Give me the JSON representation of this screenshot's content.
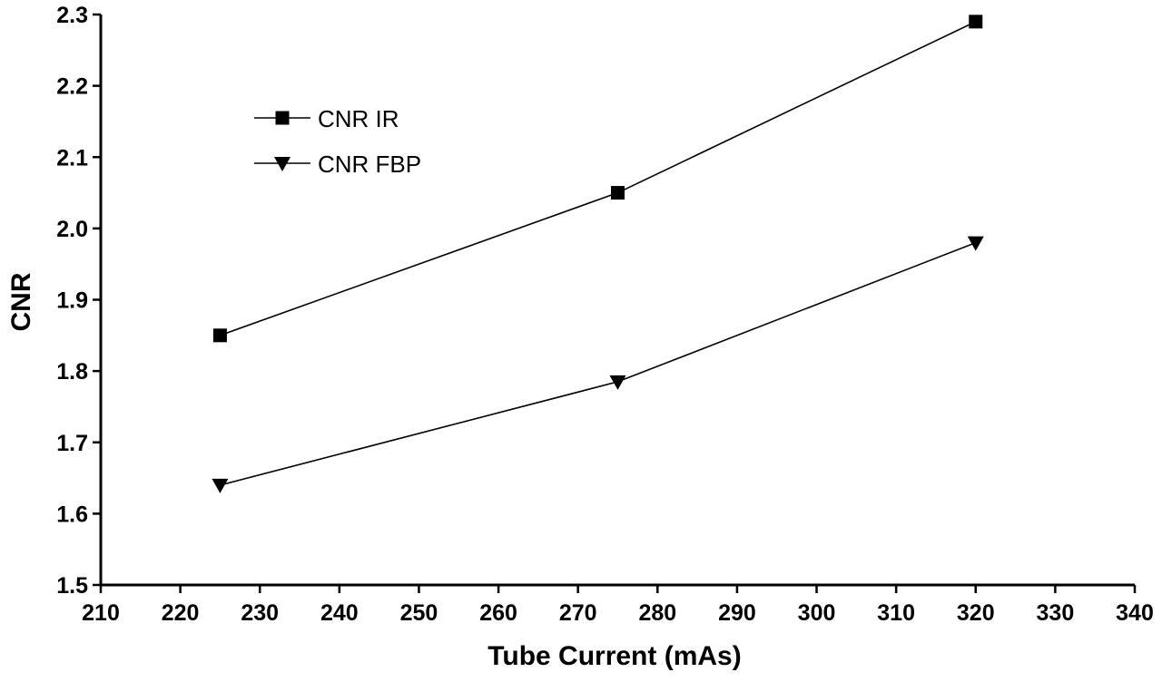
{
  "chart_data": {
    "type": "line",
    "xlabel": "Tube Current (mAs)",
    "ylabel": "CNR",
    "xlim": [
      210,
      340
    ],
    "ylim": [
      1.5,
      2.3
    ],
    "xticks": [
      "210",
      "220",
      "230",
      "240",
      "250",
      "260",
      "270",
      "280",
      "290",
      "300",
      "310",
      "320",
      "330",
      "340"
    ],
    "yticks": [
      "1.5",
      "1.6",
      "1.7",
      "1.8",
      "1.9",
      "2.0",
      "2.1",
      "2.2",
      "2.3"
    ],
    "grid": false,
    "legend_position": "top-left",
    "series": [
      {
        "name": "CNR IR",
        "marker": "square",
        "color": "#000000",
        "x": [
          225,
          275,
          320
        ],
        "y": [
          1.85,
          2.05,
          2.29
        ]
      },
      {
        "name": "CNR FBP",
        "marker": "triangle-down",
        "color": "#000000",
        "x": [
          225,
          275,
          320
        ],
        "y": [
          1.64,
          1.785,
          1.98
        ]
      }
    ]
  }
}
